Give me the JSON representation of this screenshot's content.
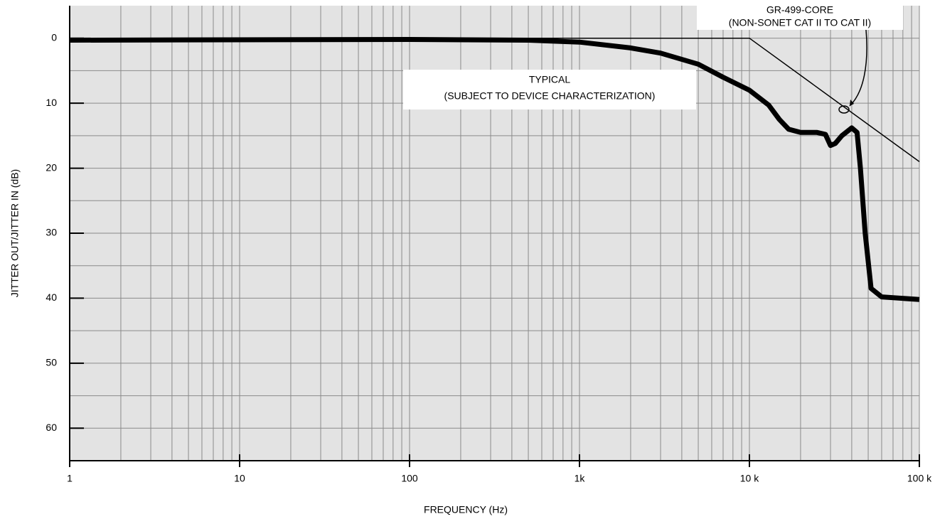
{
  "chart_data": {
    "type": "line",
    "xlabel": "FREQUENCY (Hz)",
    "ylabel": "JITTER OUT/JITTER IN (dB)",
    "xscale": "log",
    "xlim": [
      1,
      100000
    ],
    "xticks": [
      1,
      10,
      100,
      {
        "value": 1000,
        "label": "1k"
      },
      {
        "value": 10000,
        "label": "10 k"
      },
      {
        "value": 100000,
        "label": "100 k"
      }
    ],
    "ylim": [
      65,
      -5
    ],
    "yticks": [
      0,
      10,
      20,
      30,
      40,
      50,
      60
    ],
    "yminor": [
      5,
      15,
      25,
      35,
      45,
      55
    ],
    "grid": true,
    "background": "#e3e3e3",
    "series": [
      {
        "color": "#000000",
        "width": 7,
        "x": [
          1,
          100,
          500,
          1000,
          2000,
          3000,
          5000,
          7000,
          10000,
          13000,
          15000,
          17000,
          20000,
          25000,
          28000,
          30000,
          32000,
          35000,
          40000,
          43000,
          45000,
          48000,
          52000,
          60000,
          100000
        ],
        "values": [
          0.3,
          0.2,
          0.3,
          0.6,
          1.5,
          2.3,
          4,
          6,
          8,
          10.3,
          12.5,
          14,
          14.5,
          14.5,
          14.8,
          16.5,
          16.2,
          15,
          13.8,
          14.5,
          20,
          30,
          38.5,
          39.8,
          40.2
        ]
      },
      {
        "color": "#000000",
        "width": 1.5,
        "x": [
          1,
          10000,
          100000
        ],
        "values": [
          0,
          0,
          19
        ]
      }
    ],
    "annotations": [
      {
        "lines": [
          "TYPICAL",
          "(SUBJECT TO DEVICE CHARACTERIZATION)"
        ]
      },
      {
        "lines": [
          "GR-499-CORE",
          "(NON-SONET CAT II TO CAT II)"
        ]
      }
    ]
  }
}
